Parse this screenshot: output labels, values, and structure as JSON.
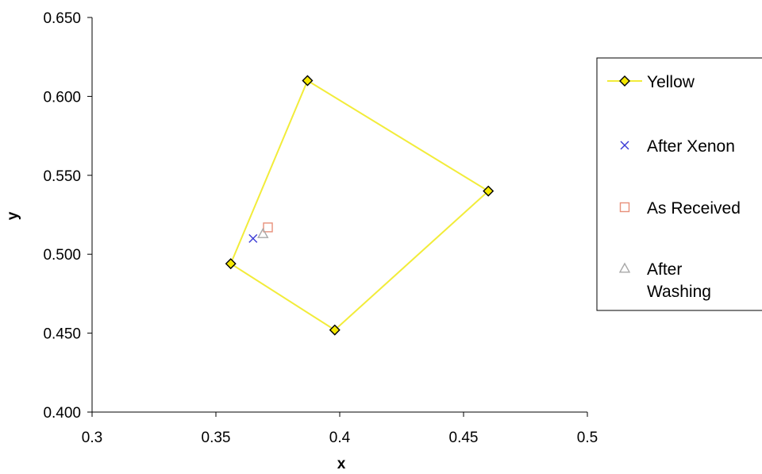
{
  "chart_data": {
    "type": "scatter",
    "title": "",
    "xlabel": "x",
    "ylabel": "y",
    "xlim": [
      0.3,
      0.5
    ],
    "ylim": [
      0.4,
      0.65
    ],
    "x_ticks": [
      "0.3",
      "0.35",
      "0.4",
      "0.45",
      "0.5"
    ],
    "y_ticks": [
      "0.400",
      "0.450",
      "0.500",
      "0.550",
      "0.600",
      "0.650"
    ],
    "grid": false,
    "legend_position": "right",
    "series": [
      {
        "name": "Yellow",
        "marker": "diamond",
        "line": true,
        "closed": true,
        "color": "#f2ec3a",
        "marker_fill": "#f5e800",
        "marker_stroke": "#000000",
        "points": [
          {
            "x": 0.387,
            "y": 0.61
          },
          {
            "x": 0.46,
            "y": 0.54
          },
          {
            "x": 0.398,
            "y": 0.452
          },
          {
            "x": 0.356,
            "y": 0.494
          },
          {
            "x": 0.387,
            "y": 0.61
          }
        ]
      },
      {
        "name": "After Xenon",
        "legend_lines": [
          "After Xenon"
        ],
        "marker": "x",
        "line": false,
        "color": "#3a3ad6",
        "points": [
          {
            "x": 0.365,
            "y": 0.51
          }
        ]
      },
      {
        "name": "As Received",
        "legend_lines": [
          "As Received"
        ],
        "marker": "square",
        "line": false,
        "color": "#e8907a",
        "points": [
          {
            "x": 0.371,
            "y": 0.517
          }
        ]
      },
      {
        "name": "After Washing",
        "legend_lines": [
          "After",
          "Washing"
        ],
        "marker": "triangle",
        "line": false,
        "color": "#a8a8a8",
        "points": [
          {
            "x": 0.369,
            "y": 0.513
          }
        ]
      }
    ]
  }
}
